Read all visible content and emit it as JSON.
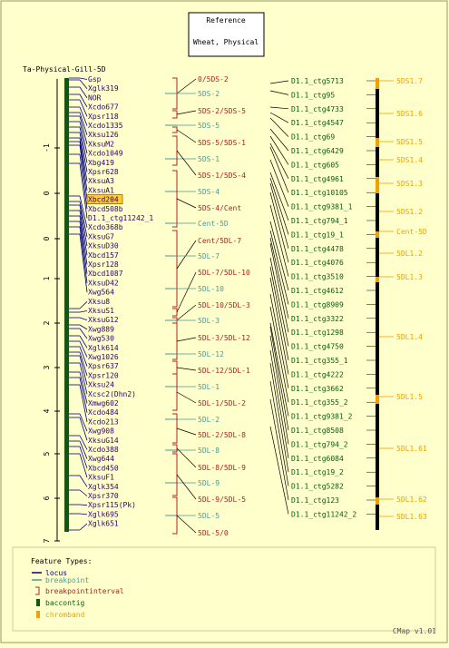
{
  "reference_box": {
    "line1": "Reference",
    "line2": "Wheat, Physical"
  },
  "map_title": "Ta-Physical-Gill-5D",
  "axis": {
    "ticks": [
      "-1",
      "0",
      "0",
      "1",
      "2",
      "3",
      "4",
      "5",
      "6",
      "7"
    ]
  },
  "loci": [
    "Gsp",
    "Xglk319",
    "NOR",
    "Xcdo677",
    "Xpsr118",
    "Xcdo1335",
    "Xksu126",
    "XksuM2",
    "Xcdo1049",
    "Xbg419",
    "Xpsr628",
    "XksuA3",
    "XksuA1",
    "Xbcd204",
    "Xbcd508b",
    "D1.1_ctg11242_1",
    "Xcdo368b",
    "XksuG7",
    "XksuD30",
    "Xbcd157",
    "Xpsr128",
    "Xbcd1087",
    "XksuD42",
    "Xwg564",
    "Xksu8",
    "XksuS1",
    "XksuG12",
    "Xwg889",
    "Xwg530",
    "Xglk614",
    "Xwg1026",
    "Xpsr637",
    "Xpsr120",
    "Xksu24",
    "Xcsc2(Dhn2)",
    "Xmwg602",
    "Xcdo484",
    "Xcdo213",
    "Xwg908",
    "XksuG14",
    "Xcdo388",
    "Xwg644",
    "Xbcd450",
    "XksuF1",
    "Xglk354",
    "Xpsr370",
    "Xpsr115(Pk)",
    "Xglk695",
    "Xglk651"
  ],
  "highlighted_locus": "Xbcd204",
  "breakpoints": [
    {
      "label": "0/5DS-2",
      "kind": "interval"
    },
    {
      "label": "5DS-2",
      "kind": "breakpoint"
    },
    {
      "label": "5DS-2/5DS-5",
      "kind": "interval"
    },
    {
      "label": "5DS-5",
      "kind": "breakpoint"
    },
    {
      "label": "5DS-5/5DS-1",
      "kind": "interval"
    },
    {
      "label": "5DS-1",
      "kind": "breakpoint"
    },
    {
      "label": "5DS-1/5DS-4",
      "kind": "interval"
    },
    {
      "label": "5DS-4",
      "kind": "breakpoint"
    },
    {
      "label": "5DS-4/Cent",
      "kind": "interval"
    },
    {
      "label": "Cent-5D",
      "kind": "breakpoint"
    },
    {
      "label": "Cent/5DL-7",
      "kind": "interval"
    },
    {
      "label": "5DL-7",
      "kind": "breakpoint"
    },
    {
      "label": "5DL-7/5DL-10",
      "kind": "interval"
    },
    {
      "label": "5DL-10",
      "kind": "breakpoint"
    },
    {
      "label": "5DL-10/5DL-3",
      "kind": "interval"
    },
    {
      "label": "5DL-3",
      "kind": "breakpoint"
    },
    {
      "label": "5DL-3/5DL-12",
      "kind": "interval"
    },
    {
      "label": "5DL-12",
      "kind": "breakpoint"
    },
    {
      "label": "5DL-12/5DL-1",
      "kind": "interval"
    },
    {
      "label": "5DL-1",
      "kind": "breakpoint"
    },
    {
      "label": "5DL-1/5DL-2",
      "kind": "interval"
    },
    {
      "label": "5DL-2",
      "kind": "breakpoint"
    },
    {
      "label": "5DL-2/5DL-8",
      "kind": "interval"
    },
    {
      "label": "5DL-8",
      "kind": "breakpoint"
    },
    {
      "label": "5DL-8/5DL-9",
      "kind": "interval"
    },
    {
      "label": "5DL-9",
      "kind": "breakpoint"
    },
    {
      "label": "5DL-9/5DL-5",
      "kind": "interval"
    },
    {
      "label": "5DL-5",
      "kind": "breakpoint"
    },
    {
      "label": "5DL-5/0",
      "kind": "interval"
    }
  ],
  "contigs": [
    "D1.1_ctg5713",
    "D1.1_ctg95",
    "D1.1_ctg4733",
    "D1.1_ctg4547",
    "D1.1_ctg69",
    "D1.1_ctg6429",
    "D1.1_ctg605",
    "D1.1_ctg4961",
    "D1.1_ctg10105",
    "D1.1_ctg9381_1",
    "D1.1_ctg794_1",
    "D1.1_ctg19_1",
    "D1.1_ctg4478",
    "D1.1_ctg4076",
    "D1.1_ctg3510",
    "D1.1_ctg4612",
    "D1.1_ctg8909",
    "D1.1_ctg3322",
    "D1.1_ctg1298",
    "D1.1_ctg4750",
    "D1.1_ctg355_1",
    "D1.1_ctg4222",
    "D1.1_ctg3662",
    "D1.1_ctg355_2",
    "D1.1_ctg9381_2",
    "D1.1_ctg8508",
    "D1.1_ctg794_2",
    "D1.1_ctg6084",
    "D1.1_ctg19_2",
    "D1.1_ctg5282",
    "D1.1_ctg123",
    "D1.1_ctg11242_2"
  ],
  "chromband_labels": [
    "5DS1.7",
    "5DS1.6",
    "5DS1.5",
    "5DS1.4",
    "5DS1.3",
    "5DS1.2",
    "Cent-5D",
    "5DL1.2",
    "5DL1.3",
    "5DL1.4",
    "5DL1.5",
    "5DL1.61",
    "5DL1.62",
    "5DL1.63"
  ],
  "legend": {
    "title": "Feature Types:",
    "items": [
      {
        "label": "locus",
        "color": "#000080"
      },
      {
        "label": "breakpoint",
        "color": "#4a9a9a"
      },
      {
        "label": "breakpointinterval",
        "color": "#b22222"
      },
      {
        "label": "baccontig",
        "color": "#0b5a14"
      },
      {
        "label": "chromband",
        "color": "#f0a000"
      }
    ]
  },
  "footer": "CMap v1.01",
  "colors": {
    "locus_text": "#330066",
    "breakpoint": "#4a9a9a",
    "interval": "#b22222",
    "contig": "#0b5a14",
    "chromband": "#f0a000",
    "highlight_fill": "#ffcc33"
  }
}
